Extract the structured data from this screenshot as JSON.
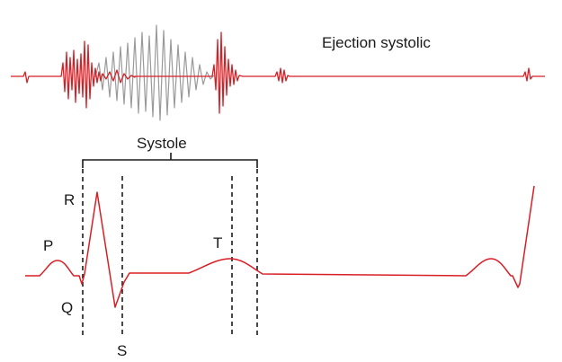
{
  "labels": {
    "phonocardiogram_title": "Ejection systolic",
    "phase": "Systole",
    "wave_p": "P",
    "wave_q": "Q",
    "wave_r": "R",
    "wave_s": "S",
    "wave_t": "T"
  },
  "colors": {
    "signal": "#d81f26",
    "murmur": "#9a9a9a",
    "text": "#1a1a1a",
    "guide": "#1a1a1a"
  }
}
